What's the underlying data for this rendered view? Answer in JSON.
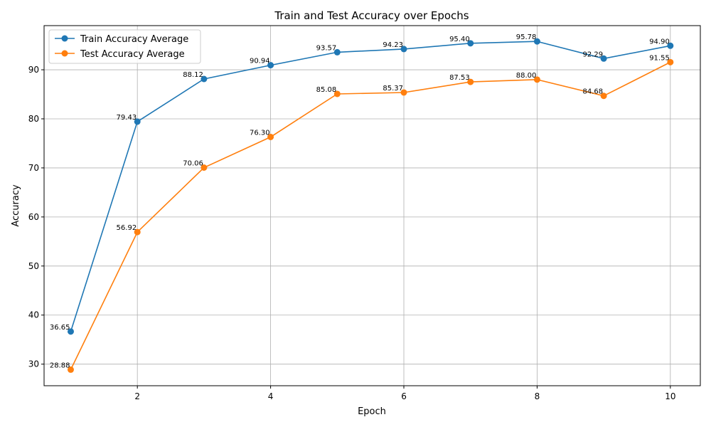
{
  "chart_data": {
    "type": "line",
    "title": "Train and Test Accuracy over Epochs",
    "xlabel": "Epoch",
    "ylabel": "Accuracy",
    "x": [
      1,
      2,
      3,
      4,
      5,
      6,
      7,
      8,
      9,
      10
    ],
    "xlim": [
      0.6,
      10.45
    ],
    "ylim": [
      25.6,
      99.0
    ],
    "xticks": [
      2,
      4,
      6,
      8,
      10
    ],
    "yticks": [
      30,
      40,
      50,
      60,
      70,
      80,
      90
    ],
    "grid": true,
    "legend_position": "top-left",
    "series": [
      {
        "name": "Train Accuracy Average",
        "color": "#1f77b4",
        "values": [
          36.65,
          79.43,
          88.12,
          90.94,
          93.57,
          94.23,
          95.4,
          95.78,
          92.29,
          94.9
        ],
        "labels": [
          "36.65",
          "79.43",
          "88.12",
          "90.94",
          "93.57",
          "94.23",
          "95.40",
          "95.78",
          "92.29",
          "94.90"
        ]
      },
      {
        "name": "Test Accuracy Average",
        "color": "#ff7f0e",
        "values": [
          28.88,
          56.92,
          70.06,
          76.3,
          85.08,
          85.37,
          87.53,
          88.0,
          84.68,
          91.55
        ],
        "labels": [
          "28.88",
          "56.92",
          "70.06",
          "76.30",
          "85.08",
          "85.37",
          "87.53",
          "88.00",
          "84.68",
          "91.55"
        ]
      }
    ]
  }
}
